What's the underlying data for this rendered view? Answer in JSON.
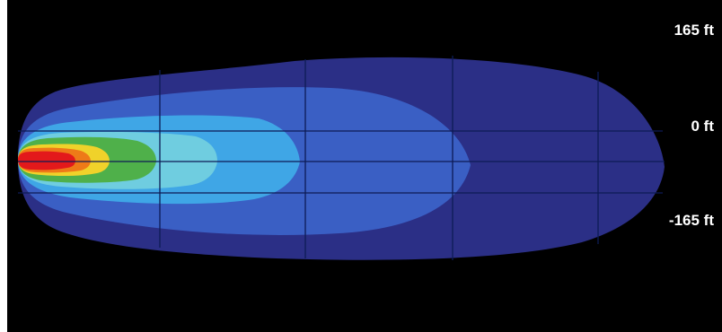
{
  "figure": {
    "background": "#000000",
    "contour_colors": {
      "outer": "#2b2f86",
      "band_2": "#3a5fc4",
      "band_3": "#3fa6e6",
      "band_4": "#6fcde0",
      "band_5": "#4fb04a",
      "band_6": "#f0d22a",
      "band_7": "#ee7a18",
      "core": "#e3191b"
    },
    "grid_color": "#0d1b55",
    "distance_labels": {
      "top": "165 ft",
      "middle": "0 ft",
      "bottom": "-165 ft"
    }
  }
}
